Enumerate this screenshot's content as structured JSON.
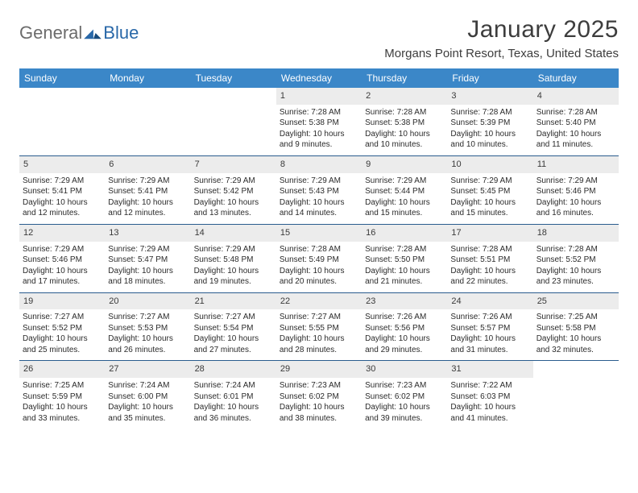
{
  "logo": {
    "text1": "General",
    "text2": "Blue"
  },
  "brand_color": "#2968a8",
  "header_bg": "#3b87c8",
  "title": "January 2025",
  "location": "Morgans Point Resort, Texas, United States",
  "days_of_week": [
    "Sunday",
    "Monday",
    "Tuesday",
    "Wednesday",
    "Thursday",
    "Friday",
    "Saturday"
  ],
  "weeks": [
    [
      {
        "n": "",
        "sr": "",
        "ss": "",
        "dl": ""
      },
      {
        "n": "",
        "sr": "",
        "ss": "",
        "dl": ""
      },
      {
        "n": "",
        "sr": "",
        "ss": "",
        "dl": ""
      },
      {
        "n": "1",
        "sr": "Sunrise: 7:28 AM",
        "ss": "Sunset: 5:38 PM",
        "dl": "Daylight: 10 hours and 9 minutes."
      },
      {
        "n": "2",
        "sr": "Sunrise: 7:28 AM",
        "ss": "Sunset: 5:38 PM",
        "dl": "Daylight: 10 hours and 10 minutes."
      },
      {
        "n": "3",
        "sr": "Sunrise: 7:28 AM",
        "ss": "Sunset: 5:39 PM",
        "dl": "Daylight: 10 hours and 10 minutes."
      },
      {
        "n": "4",
        "sr": "Sunrise: 7:28 AM",
        "ss": "Sunset: 5:40 PM",
        "dl": "Daylight: 10 hours and 11 minutes."
      }
    ],
    [
      {
        "n": "5",
        "sr": "Sunrise: 7:29 AM",
        "ss": "Sunset: 5:41 PM",
        "dl": "Daylight: 10 hours and 12 minutes."
      },
      {
        "n": "6",
        "sr": "Sunrise: 7:29 AM",
        "ss": "Sunset: 5:41 PM",
        "dl": "Daylight: 10 hours and 12 minutes."
      },
      {
        "n": "7",
        "sr": "Sunrise: 7:29 AM",
        "ss": "Sunset: 5:42 PM",
        "dl": "Daylight: 10 hours and 13 minutes."
      },
      {
        "n": "8",
        "sr": "Sunrise: 7:29 AM",
        "ss": "Sunset: 5:43 PM",
        "dl": "Daylight: 10 hours and 14 minutes."
      },
      {
        "n": "9",
        "sr": "Sunrise: 7:29 AM",
        "ss": "Sunset: 5:44 PM",
        "dl": "Daylight: 10 hours and 15 minutes."
      },
      {
        "n": "10",
        "sr": "Sunrise: 7:29 AM",
        "ss": "Sunset: 5:45 PM",
        "dl": "Daylight: 10 hours and 15 minutes."
      },
      {
        "n": "11",
        "sr": "Sunrise: 7:29 AM",
        "ss": "Sunset: 5:46 PM",
        "dl": "Daylight: 10 hours and 16 minutes."
      }
    ],
    [
      {
        "n": "12",
        "sr": "Sunrise: 7:29 AM",
        "ss": "Sunset: 5:46 PM",
        "dl": "Daylight: 10 hours and 17 minutes."
      },
      {
        "n": "13",
        "sr": "Sunrise: 7:29 AM",
        "ss": "Sunset: 5:47 PM",
        "dl": "Daylight: 10 hours and 18 minutes."
      },
      {
        "n": "14",
        "sr": "Sunrise: 7:29 AM",
        "ss": "Sunset: 5:48 PM",
        "dl": "Daylight: 10 hours and 19 minutes."
      },
      {
        "n": "15",
        "sr": "Sunrise: 7:28 AM",
        "ss": "Sunset: 5:49 PM",
        "dl": "Daylight: 10 hours and 20 minutes."
      },
      {
        "n": "16",
        "sr": "Sunrise: 7:28 AM",
        "ss": "Sunset: 5:50 PM",
        "dl": "Daylight: 10 hours and 21 minutes."
      },
      {
        "n": "17",
        "sr": "Sunrise: 7:28 AM",
        "ss": "Sunset: 5:51 PM",
        "dl": "Daylight: 10 hours and 22 minutes."
      },
      {
        "n": "18",
        "sr": "Sunrise: 7:28 AM",
        "ss": "Sunset: 5:52 PM",
        "dl": "Daylight: 10 hours and 23 minutes."
      }
    ],
    [
      {
        "n": "19",
        "sr": "Sunrise: 7:27 AM",
        "ss": "Sunset: 5:52 PM",
        "dl": "Daylight: 10 hours and 25 minutes."
      },
      {
        "n": "20",
        "sr": "Sunrise: 7:27 AM",
        "ss": "Sunset: 5:53 PM",
        "dl": "Daylight: 10 hours and 26 minutes."
      },
      {
        "n": "21",
        "sr": "Sunrise: 7:27 AM",
        "ss": "Sunset: 5:54 PM",
        "dl": "Daylight: 10 hours and 27 minutes."
      },
      {
        "n": "22",
        "sr": "Sunrise: 7:27 AM",
        "ss": "Sunset: 5:55 PM",
        "dl": "Daylight: 10 hours and 28 minutes."
      },
      {
        "n": "23",
        "sr": "Sunrise: 7:26 AM",
        "ss": "Sunset: 5:56 PM",
        "dl": "Daylight: 10 hours and 29 minutes."
      },
      {
        "n": "24",
        "sr": "Sunrise: 7:26 AM",
        "ss": "Sunset: 5:57 PM",
        "dl": "Daylight: 10 hours and 31 minutes."
      },
      {
        "n": "25",
        "sr": "Sunrise: 7:25 AM",
        "ss": "Sunset: 5:58 PM",
        "dl": "Daylight: 10 hours and 32 minutes."
      }
    ],
    [
      {
        "n": "26",
        "sr": "Sunrise: 7:25 AM",
        "ss": "Sunset: 5:59 PM",
        "dl": "Daylight: 10 hours and 33 minutes."
      },
      {
        "n": "27",
        "sr": "Sunrise: 7:24 AM",
        "ss": "Sunset: 6:00 PM",
        "dl": "Daylight: 10 hours and 35 minutes."
      },
      {
        "n": "28",
        "sr": "Sunrise: 7:24 AM",
        "ss": "Sunset: 6:01 PM",
        "dl": "Daylight: 10 hours and 36 minutes."
      },
      {
        "n": "29",
        "sr": "Sunrise: 7:23 AM",
        "ss": "Sunset: 6:02 PM",
        "dl": "Daylight: 10 hours and 38 minutes."
      },
      {
        "n": "30",
        "sr": "Sunrise: 7:23 AM",
        "ss": "Sunset: 6:02 PM",
        "dl": "Daylight: 10 hours and 39 minutes."
      },
      {
        "n": "31",
        "sr": "Sunrise: 7:22 AM",
        "ss": "Sunset: 6:03 PM",
        "dl": "Daylight: 10 hours and 41 minutes."
      },
      {
        "n": "",
        "sr": "",
        "ss": "",
        "dl": ""
      }
    ]
  ]
}
